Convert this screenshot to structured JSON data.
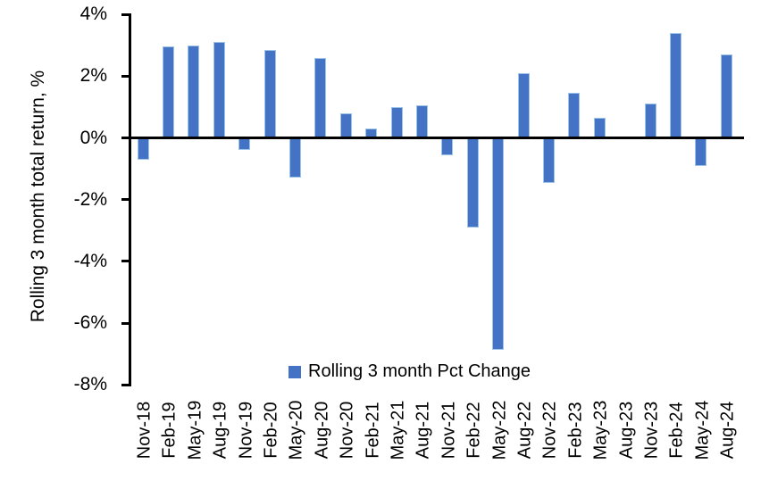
{
  "chart_data": {
    "type": "bar",
    "title": "",
    "xlabel": "",
    "ylabel": "Rolling 3 month total return, %",
    "legend_label": "Rolling 3 month Pct Change",
    "legend_position": "inside-bottom-center",
    "ylim": [
      -8,
      4
    ],
    "ytick_labels": [
      "4%",
      "2%",
      "0%",
      "-2%",
      "-4%",
      "-6%",
      "-8%"
    ],
    "ytick_values": [
      4,
      2,
      0,
      -2,
      -4,
      -6,
      -8
    ],
    "grid": false,
    "bar_color": "#4472C4",
    "bar_edge_color": "#9dc3e6",
    "categories": [
      "Nov-18",
      "Feb-19",
      "May-19",
      "Aug-19",
      "Nov-19",
      "Feb-20",
      "May-20",
      "Aug-20",
      "Nov-20",
      "Feb-21",
      "May-21",
      "Aug-21",
      "Nov-21",
      "Feb-22",
      "May-22",
      "Aug-22",
      "Nov-22",
      "Feb-23",
      "May-23",
      "Aug-23",
      "Nov-23",
      "Feb-24",
      "May-24",
      "Aug-24"
    ],
    "values": [
      -0.7,
      2.95,
      3.0,
      3.1,
      -0.4,
      2.85,
      -1.3,
      2.6,
      0.8,
      0.3,
      1.0,
      1.05,
      -0.55,
      -2.9,
      -6.85,
      2.1,
      -1.45,
      1.45,
      0.65,
      0.0,
      1.1,
      3.4,
      -0.9,
      2.7
    ]
  }
}
